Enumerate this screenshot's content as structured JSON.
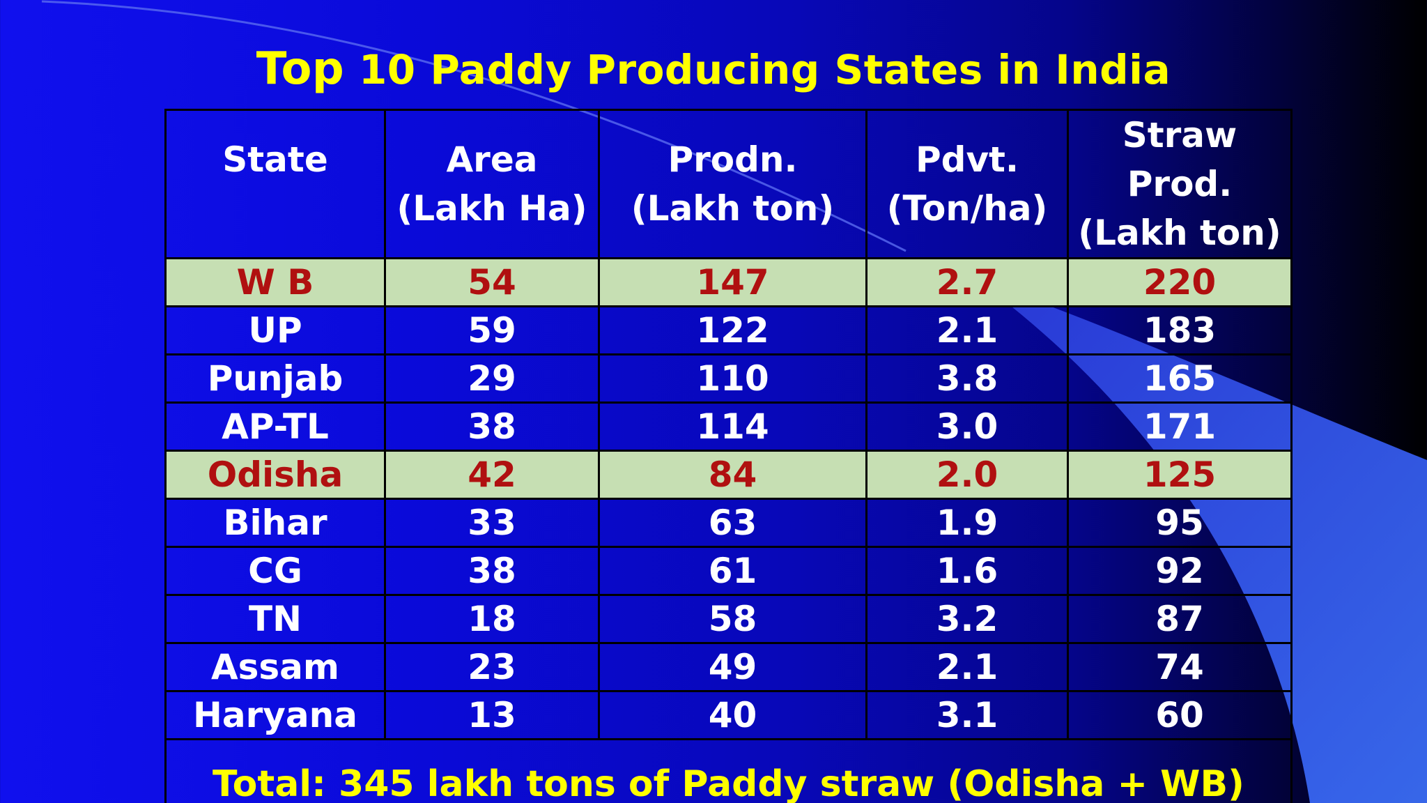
{
  "slide": {
    "title_first": "Top",
    "title_rest": "10 Paddy Producing States in India"
  },
  "table": {
    "headers": [
      {
        "line1": "State",
        "line2": ""
      },
      {
        "line1": "Area",
        "line2": "(Lakh Ha)"
      },
      {
        "line1": "Prodn.",
        "line2": "(Lakh ton)"
      },
      {
        "line1": "Pdvt.",
        "line2": "(Ton/ha)"
      },
      {
        "line1": "Straw Prod.",
        "line2": "(Lakh ton)"
      }
    ],
    "rows": [
      {
        "state": "W B",
        "area": "54",
        "prodn": "147",
        "pdvt": "2.7",
        "straw": "220",
        "highlight": true
      },
      {
        "state": "UP",
        "area": "59",
        "prodn": "122",
        "pdvt": "2.1",
        "straw": "183",
        "highlight": false
      },
      {
        "state": "Punjab",
        "area": "29",
        "prodn": "110",
        "pdvt": "3.8",
        "straw": "165",
        "highlight": false
      },
      {
        "state": "AP-TL",
        "area": "38",
        "prodn": "114",
        "pdvt": "3.0",
        "straw": "171",
        "highlight": false
      },
      {
        "state": "Odisha",
        "area": "42",
        "prodn": "84",
        "pdvt": "2.0",
        "straw": "125",
        "highlight": true
      },
      {
        "state": "Bihar",
        "area": "33",
        "prodn": "63",
        "pdvt": "1.9",
        "straw": "95",
        "highlight": false
      },
      {
        "state": "CG",
        "area": "38",
        "prodn": "61",
        "pdvt": "1.6",
        "straw": "92",
        "highlight": false
      },
      {
        "state": "TN",
        "area": "18",
        "prodn": "58",
        "pdvt": "3.2",
        "straw": "87",
        "highlight": false
      },
      {
        "state": "Assam",
        "area": "23",
        "prodn": "49",
        "pdvt": "2.1",
        "straw": "74",
        "highlight": false
      },
      {
        "state": "Haryana",
        "area": "13",
        "prodn": "40",
        "pdvt": "3.1",
        "straw": "60",
        "highlight": false
      }
    ],
    "total": "Total: 345 lakh tons of Paddy straw (Odisha + WB)"
  },
  "colors": {
    "title": "#ffff00",
    "highlight_bg": "#c6dfb3",
    "highlight_text": "#b01010",
    "body_text": "#ffffff"
  }
}
